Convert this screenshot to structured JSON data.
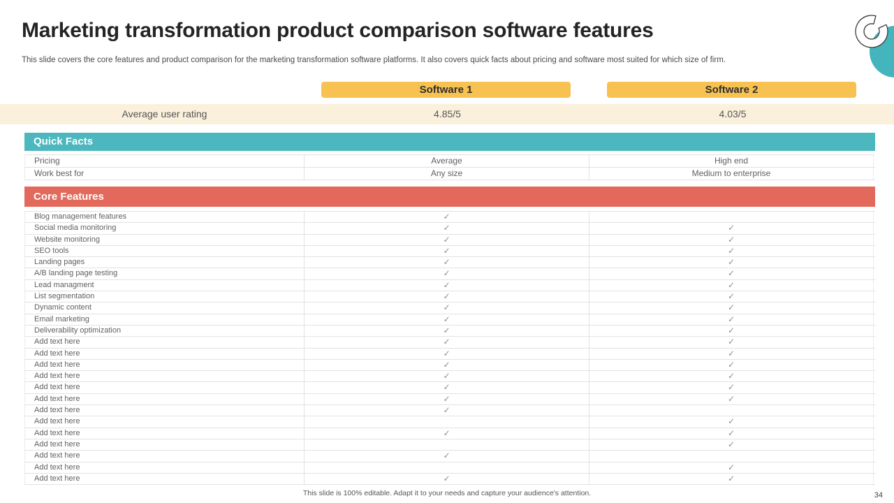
{
  "slide": {
    "title": "Marketing transformation product comparison software features",
    "subtitle": "This slide covers the core features and product comparison for the marketing transformation software platforms. It also covers quick facts about pricing and software most suited for which size of firm.",
    "footer": "This slide is 100% editable.  Adapt it to your needs and capture your audience's attention.",
    "page_number": "34"
  },
  "colors": {
    "yellow": "#F7C251",
    "cream": "#FAF0DC",
    "teal": "#4CB7BE",
    "coral": "#E2695B",
    "circle_teal": "#44B4BD"
  },
  "icons": {
    "check_glyph": "✓",
    "decoration": "teal-circle-with-c-ring"
  },
  "comparison": {
    "products": [
      "Software 1",
      "Software 2"
    ],
    "rating": {
      "label": "Average user rating",
      "values": [
        "4.85/5",
        "4.03/5"
      ]
    },
    "sections": [
      {
        "heading": "Quick Facts",
        "style": "teal",
        "row_type": "text",
        "rows": [
          {
            "label": "Pricing",
            "values": [
              "Average",
              "High end"
            ]
          },
          {
            "label": "Work best for",
            "values": [
              "Any size",
              "Medium to enterprise"
            ]
          }
        ]
      },
      {
        "heading": "Core Features",
        "style": "coral",
        "row_type": "check",
        "rows": [
          {
            "label": "Blog management features",
            "values": [
              true,
              false
            ]
          },
          {
            "label": "Social media monitoring",
            "values": [
              true,
              true
            ]
          },
          {
            "label": "Website monitoring",
            "values": [
              true,
              true
            ]
          },
          {
            "label": "SEO tools",
            "values": [
              true,
              true
            ]
          },
          {
            "label": "Landing pages",
            "values": [
              true,
              true
            ]
          },
          {
            "label": "A/B landing page testing",
            "values": [
              true,
              true
            ]
          },
          {
            "label": "Lead managment",
            "values": [
              true,
              true
            ]
          },
          {
            "label": "List segmentation",
            "values": [
              true,
              true
            ]
          },
          {
            "label": "Dynamic content",
            "values": [
              true,
              true
            ]
          },
          {
            "label": "Email marketing",
            "values": [
              true,
              true
            ]
          },
          {
            "label": "Deliverability optimization",
            "values": [
              true,
              true
            ]
          },
          {
            "label": "Add text here",
            "values": [
              true,
              true
            ]
          },
          {
            "label": "Add text here",
            "values": [
              true,
              true
            ]
          },
          {
            "label": "Add text here",
            "values": [
              true,
              true
            ]
          },
          {
            "label": "Add text here",
            "values": [
              true,
              true
            ]
          },
          {
            "label": "Add text here",
            "values": [
              true,
              true
            ]
          },
          {
            "label": "Add text here",
            "values": [
              true,
              true
            ]
          },
          {
            "label": "Add text here",
            "values": [
              true,
              false
            ]
          },
          {
            "label": "Add text here",
            "values": [
              false,
              true
            ]
          },
          {
            "label": "Add text here",
            "values": [
              true,
              true
            ]
          },
          {
            "label": "Add text here",
            "values": [
              false,
              true
            ]
          },
          {
            "label": "Add text here",
            "values": [
              true,
              false
            ]
          },
          {
            "label": "Add text here",
            "values": [
              false,
              true
            ]
          },
          {
            "label": "Add text here",
            "values": [
              true,
              true
            ]
          }
        ]
      }
    ]
  }
}
